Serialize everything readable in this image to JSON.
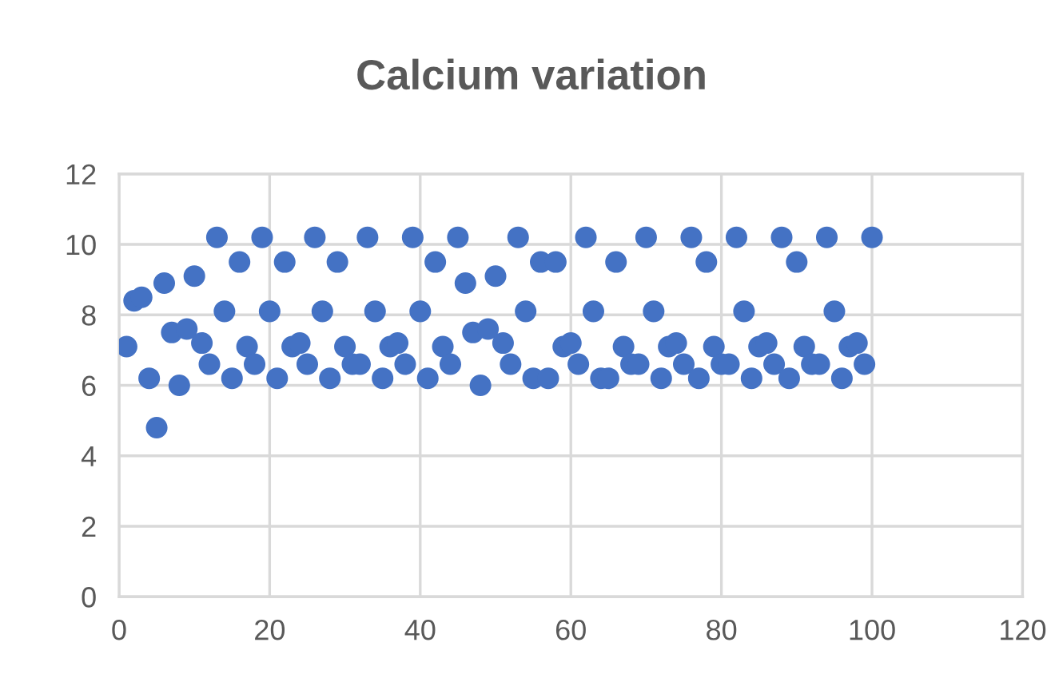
{
  "chart_data": {
    "type": "scatter",
    "title": "Calcium variation",
    "x": [
      1,
      2,
      3,
      4,
      5,
      6,
      7,
      8,
      9,
      10,
      11,
      12,
      13,
      14,
      15,
      16,
      17,
      18,
      19,
      20,
      21,
      22,
      23,
      24,
      25,
      26,
      27,
      28,
      29,
      30,
      31,
      32,
      33,
      34,
      35,
      36,
      37,
      38,
      39,
      40,
      41,
      42,
      43,
      44,
      45,
      46,
      47,
      48,
      49,
      50,
      51,
      52,
      53,
      54,
      55,
      56,
      57,
      58,
      59,
      60,
      61,
      62,
      63,
      64,
      65,
      66,
      67,
      68,
      69,
      70,
      71,
      72,
      73,
      74,
      75,
      76,
      77,
      78,
      79,
      80,
      81,
      82,
      83,
      84,
      85,
      86,
      87,
      88,
      89,
      90,
      91,
      92,
      93,
      94,
      95,
      96,
      97,
      98,
      99,
      100
    ],
    "series": [
      {
        "color": "#4472c4",
        "values": [
          7.1,
          8.4,
          8.5,
          6.2,
          4.8,
          8.9,
          7.5,
          6.0,
          7.6,
          9.1,
          7.2,
          6.6,
          10.2,
          8.1,
          6.2,
          9.5,
          7.1,
          6.6,
          10.2,
          8.1,
          6.2,
          9.5,
          7.1,
          7.2,
          6.6,
          10.2,
          8.1,
          6.2,
          9.5,
          7.1,
          6.6,
          6.6,
          10.2,
          8.1,
          6.2,
          7.1,
          7.2,
          6.6,
          10.2,
          8.1,
          6.2,
          9.5,
          7.1,
          6.6,
          10.2,
          8.9,
          7.5,
          6.0,
          7.6,
          9.1,
          7.2,
          6.6,
          10.2,
          8.1,
          6.2,
          9.5,
          6.2,
          9.5,
          7.1,
          7.2,
          6.6,
          10.2,
          8.1,
          6.2,
          6.2,
          9.5,
          7.1,
          6.6,
          6.6,
          10.2,
          8.1,
          6.2,
          7.1,
          7.2,
          6.6,
          10.2,
          6.2,
          9.5,
          7.1,
          6.6,
          6.6,
          10.2,
          8.1,
          6.2,
          7.1,
          7.2,
          6.6,
          10.2,
          6.2,
          9.5,
          7.1,
          6.6,
          6.6,
          10.2,
          8.1,
          6.2,
          7.1,
          7.2,
          6.6,
          10.2
        ]
      }
    ],
    "xlim": [
      0,
      120
    ],
    "xticks": [
      0,
      20,
      40,
      60,
      80,
      100,
      120
    ],
    "ylim": [
      0,
      12
    ],
    "yticks": [
      0,
      2,
      4,
      6,
      8,
      10,
      12
    ],
    "grid": true,
    "marker": "circle"
  }
}
